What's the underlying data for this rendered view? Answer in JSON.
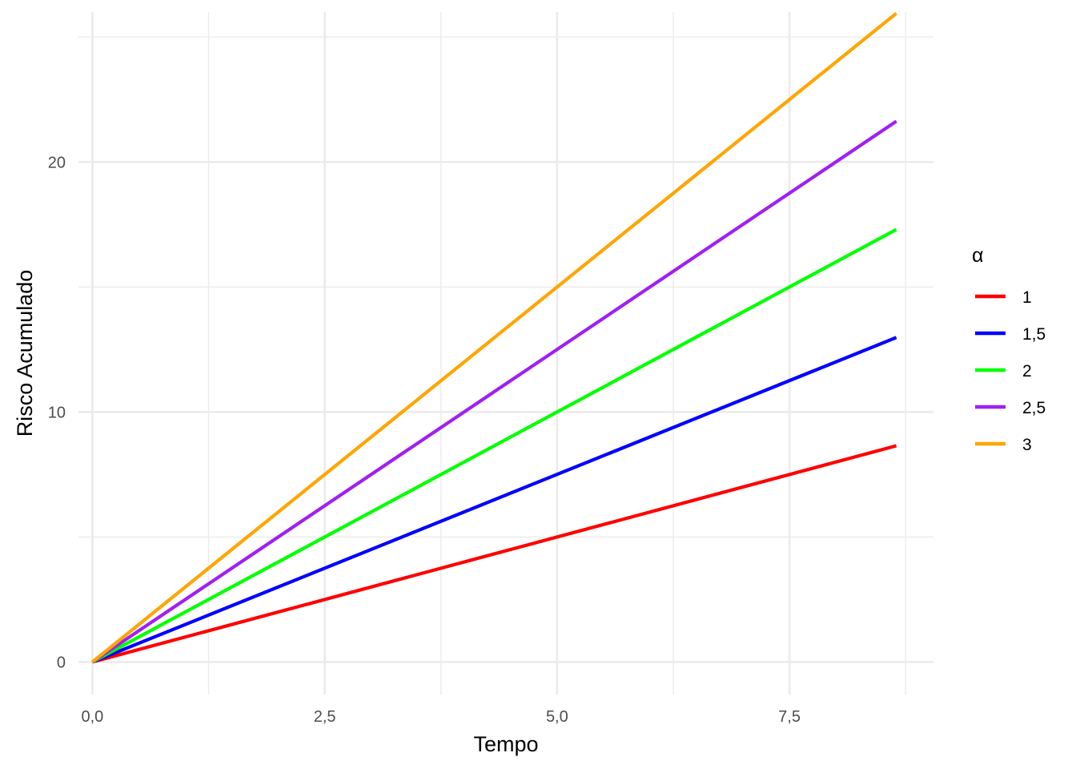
{
  "chart_data": {
    "type": "line",
    "xlabel": "Tempo",
    "ylabel": "Risco Acumulado",
    "xlim": [
      -0.15,
      9.05
    ],
    "ylim": [
      -1.3,
      26.0
    ],
    "x_ticks": [
      0,
      2.5,
      5,
      7.5
    ],
    "x_tick_labels": [
      "0,0",
      "2,5",
      "5,0",
      "7,5"
    ],
    "x_minor_ticks": [
      1.25,
      3.75,
      6.25,
      8.75
    ],
    "y_ticks": [
      0,
      10,
      20
    ],
    "y_tick_labels": [
      "0",
      "10",
      "20"
    ],
    "y_minor_ticks": [
      5,
      15,
      25
    ],
    "grid": true,
    "legend": {
      "title": "α",
      "placement": "right"
    },
    "x": [
      0,
      8.65
    ],
    "series": [
      {
        "name": "1",
        "color": "#ff0000",
        "values": [
          0,
          8.65
        ]
      },
      {
        "name": "1,5",
        "color": "#0000ff",
        "values": [
          0,
          12.98
        ]
      },
      {
        "name": "2",
        "color": "#00ff00",
        "values": [
          0,
          17.3
        ]
      },
      {
        "name": "2,5",
        "color": "#a020f0",
        "values": [
          0,
          21.63
        ]
      },
      {
        "name": "3",
        "color": "#ffa500",
        "values": [
          0,
          25.95
        ]
      }
    ]
  }
}
